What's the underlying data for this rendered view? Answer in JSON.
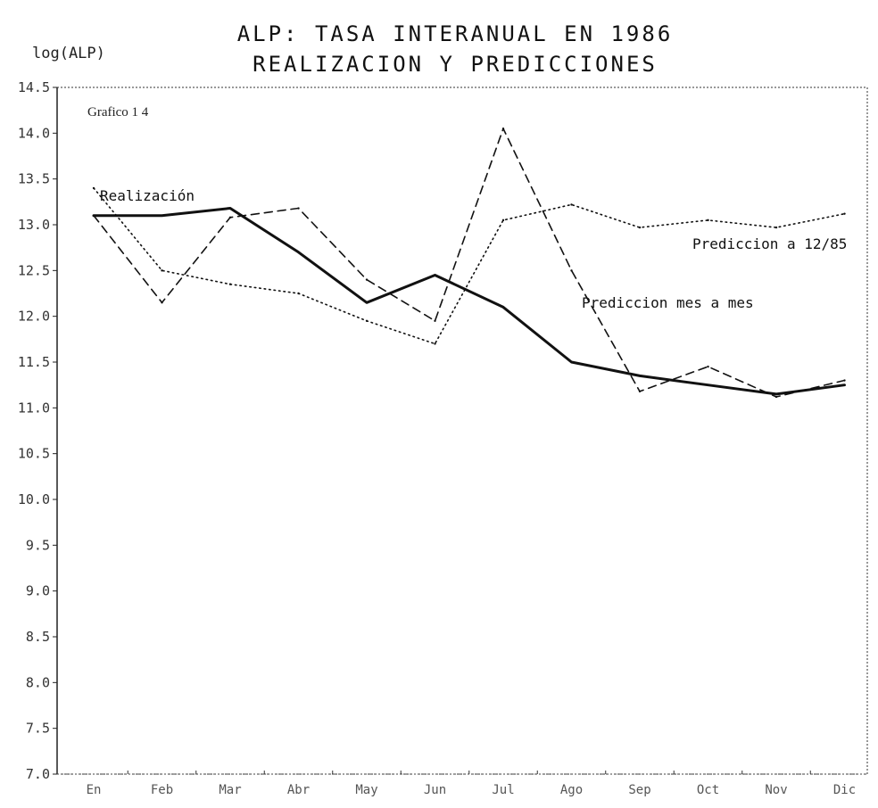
{
  "chart_data": {
    "type": "line",
    "title": "ALP: TASA INTERANUAL EN 1986",
    "subtitle": "REALIZACION Y PREDICCIONES",
    "ylabel": "log(ALP)",
    "panel_label": "Grafico 1 4",
    "categories": [
      "En",
      "Feb",
      "Mar",
      "Abr",
      "May",
      "Jun",
      "Jul",
      "Ago",
      "Sep",
      "Oct",
      "Nov",
      "Dic"
    ],
    "y_ticks": [
      "14.5",
      "14.0",
      "13.5",
      "13.0",
      "12.5",
      "12.0",
      "11.5",
      "11.0",
      "10.5",
      "10.0",
      "9.5",
      "9.0",
      "8.5",
      "8.0",
      "7.5",
      "7.0"
    ],
    "ylim": [
      7.0,
      14.5
    ],
    "grid": false,
    "series": [
      {
        "name": "Realización",
        "style": "solid",
        "values": [
          13.1,
          13.1,
          13.18,
          12.7,
          12.15,
          12.45,
          12.1,
          11.5,
          11.35,
          11.25,
          11.15,
          11.25
        ]
      },
      {
        "name": "Prediccion a 12/85",
        "style": "dotted",
        "values": [
          13.4,
          12.5,
          12.35,
          12.25,
          11.95,
          11.7,
          13.05,
          13.22,
          12.97,
          13.05,
          12.97,
          13.12
        ]
      },
      {
        "name": "Prediccion mes a mes",
        "style": "dashed",
        "values": [
          13.1,
          12.15,
          13.08,
          13.18,
          12.4,
          11.95,
          14.05,
          12.5,
          11.18,
          11.45,
          11.12,
          11.3
        ]
      }
    ],
    "annotations": {
      "real": "Realización",
      "p12": "Prediccion a 12/85",
      "pmes": "Prediccion mes a mes"
    }
  }
}
